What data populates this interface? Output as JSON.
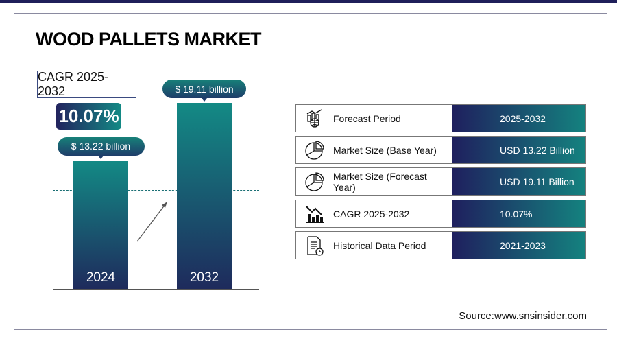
{
  "title": "WOOD PALLETS MARKET",
  "cagr": {
    "label": "CAGR 2025-2032",
    "value": "10.07%"
  },
  "colors": {
    "navy": "#1f1f5e",
    "teal": "#14827f"
  },
  "chart_data": {
    "type": "bar",
    "categories": [
      "2024",
      "2032"
    ],
    "values": [
      13.22,
      19.11
    ],
    "data_labels": [
      "$ 13.22 billion",
      "$ 19.11 billion"
    ],
    "unit": "USD billion",
    "grid": false
  },
  "table": [
    {
      "icon": "chart-globe-icon",
      "label": "Forecast Period",
      "value": "2025-2032"
    },
    {
      "icon": "pie-chart-icon",
      "label": "Market Size (Base Year)",
      "value": "USD 13.22 Billion"
    },
    {
      "icon": "pie-chart-icon",
      "label": "Market Size (Forecast Year)",
      "value": "USD 19.11 Billion"
    },
    {
      "icon": "bar-chart-decline-icon",
      "label": "CAGR 2025-2032",
      "value": "10.07%"
    },
    {
      "icon": "document-clock-icon",
      "label": "Historical Data Period",
      "value": "2021-2023"
    }
  ],
  "source": "Source:www.snsinsider.com"
}
